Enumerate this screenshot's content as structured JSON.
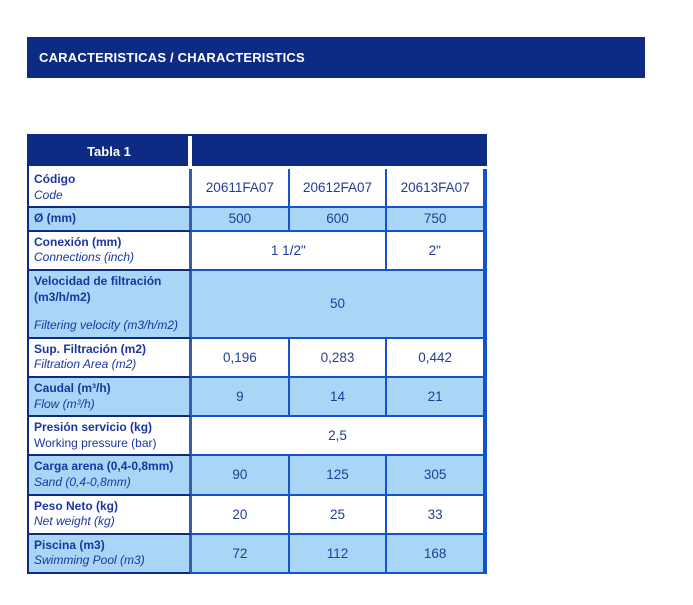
{
  "header": {
    "title": "CARACTERISTICAS / CHARACTERISTICS",
    "bg_color": "#0d2b82",
    "text_color": "#ffffff"
  },
  "colors": {
    "navy": "#0d2b82",
    "bright_blue_border": "#1353cf",
    "light_blue_row": "#a9d6f6",
    "label_text": "#1b35a1",
    "value_text": "#253c96"
  },
  "table": {
    "title": "Tabla 1",
    "rows": [
      {
        "label_es": "Código",
        "label_en": "Code",
        "en_italic": true,
        "en_gap": false,
        "shaded": false,
        "values": [
          {
            "text": "20611FA07",
            "span": 1
          },
          {
            "text": "20612FA07",
            "span": 1
          },
          {
            "text": "20613FA07",
            "span": 1
          }
        ]
      },
      {
        "label_es": "Ø (mm)",
        "label_en": "",
        "en_italic": false,
        "en_gap": false,
        "shaded": true,
        "values": [
          {
            "text": "500",
            "span": 1
          },
          {
            "text": "600",
            "span": 1
          },
          {
            "text": "750",
            "span": 1
          }
        ]
      },
      {
        "label_es": "Conexión (mm)",
        "label_en": "Connections (inch)",
        "en_italic": true,
        "en_gap": false,
        "shaded": false,
        "values": [
          {
            "text": "1 1/2\"",
            "span": 2
          },
          {
            "text": "2\"",
            "span": 1
          }
        ]
      },
      {
        "label_es": "Velocidad de filtración (m3/h/m2)",
        "label_en": "Filtering velocity (m3/h/m2)",
        "en_italic": true,
        "en_gap": true,
        "shaded": true,
        "values": [
          {
            "text": "50",
            "span": 3
          }
        ]
      },
      {
        "label_es": "Sup. Filtración (m2)",
        "label_en": "Filtration Area (m2)",
        "en_italic": true,
        "en_gap": false,
        "shaded": false,
        "values": [
          {
            "text": "0,196",
            "span": 1
          },
          {
            "text": "0,283",
            "span": 1
          },
          {
            "text": "0,442",
            "span": 1
          }
        ]
      },
      {
        "label_es": "Caudal (m³/h)",
        "label_en": "Flow (m³/h)",
        "en_italic": true,
        "en_gap": false,
        "shaded": true,
        "values": [
          {
            "text": "9",
            "span": 1
          },
          {
            "text": "14",
            "span": 1
          },
          {
            "text": "21",
            "span": 1
          }
        ]
      },
      {
        "label_es": "Presión servicio (kg)",
        "label_en": "Working pressure (bar)",
        "en_italic": false,
        "en_gap": false,
        "shaded": false,
        "values": [
          {
            "text": "2,5",
            "span": 3
          }
        ]
      },
      {
        "label_es": "Carga arena (0,4-0,8mm)",
        "label_en": "Sand (0,4-0,8mm)",
        "en_italic": true,
        "en_gap": false,
        "shaded": true,
        "values": [
          {
            "text": "90",
            "span": 1
          },
          {
            "text": "125",
            "span": 1
          },
          {
            "text": "305",
            "span": 1
          }
        ]
      },
      {
        "label_es": "Peso Neto (kg)",
        "label_en": "Net weight (kg)",
        "en_italic": true,
        "en_gap": false,
        "shaded": false,
        "values": [
          {
            "text": "20",
            "span": 1
          },
          {
            "text": "25",
            "span": 1
          },
          {
            "text": "33",
            "span": 1
          }
        ]
      },
      {
        "label_es": "Piscina (m3)",
        "label_en": "Swimming Pool (m3)",
        "en_italic": true,
        "en_gap": false,
        "shaded": true,
        "values": [
          {
            "text": "72",
            "span": 1
          },
          {
            "text": "112",
            "span": 1
          },
          {
            "text": "168",
            "span": 1
          }
        ]
      }
    ]
  }
}
